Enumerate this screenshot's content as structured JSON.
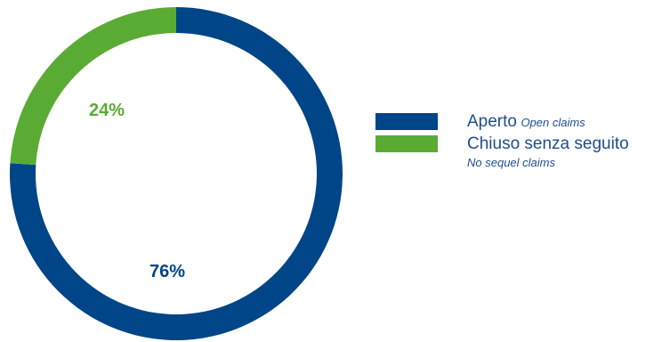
{
  "chart_data": {
    "type": "pie",
    "style": "donut",
    "title": "",
    "slices": [
      {
        "label": "Aperto",
        "sublabel": "Open claims",
        "value": 76,
        "display": "76%",
        "color": "#004587"
      },
      {
        "label": "Chiuso senza seguito",
        "sublabel": "No sequel claims",
        "value": 24,
        "display": "24%",
        "color": "#5aab33"
      }
    ],
    "legend_placement": "right"
  },
  "legend": {
    "items": [
      {
        "main": "Aperto",
        "sub": "Open claims"
      },
      {
        "main": "Chiuso senza seguito",
        "sub": "No sequel claims"
      }
    ]
  }
}
